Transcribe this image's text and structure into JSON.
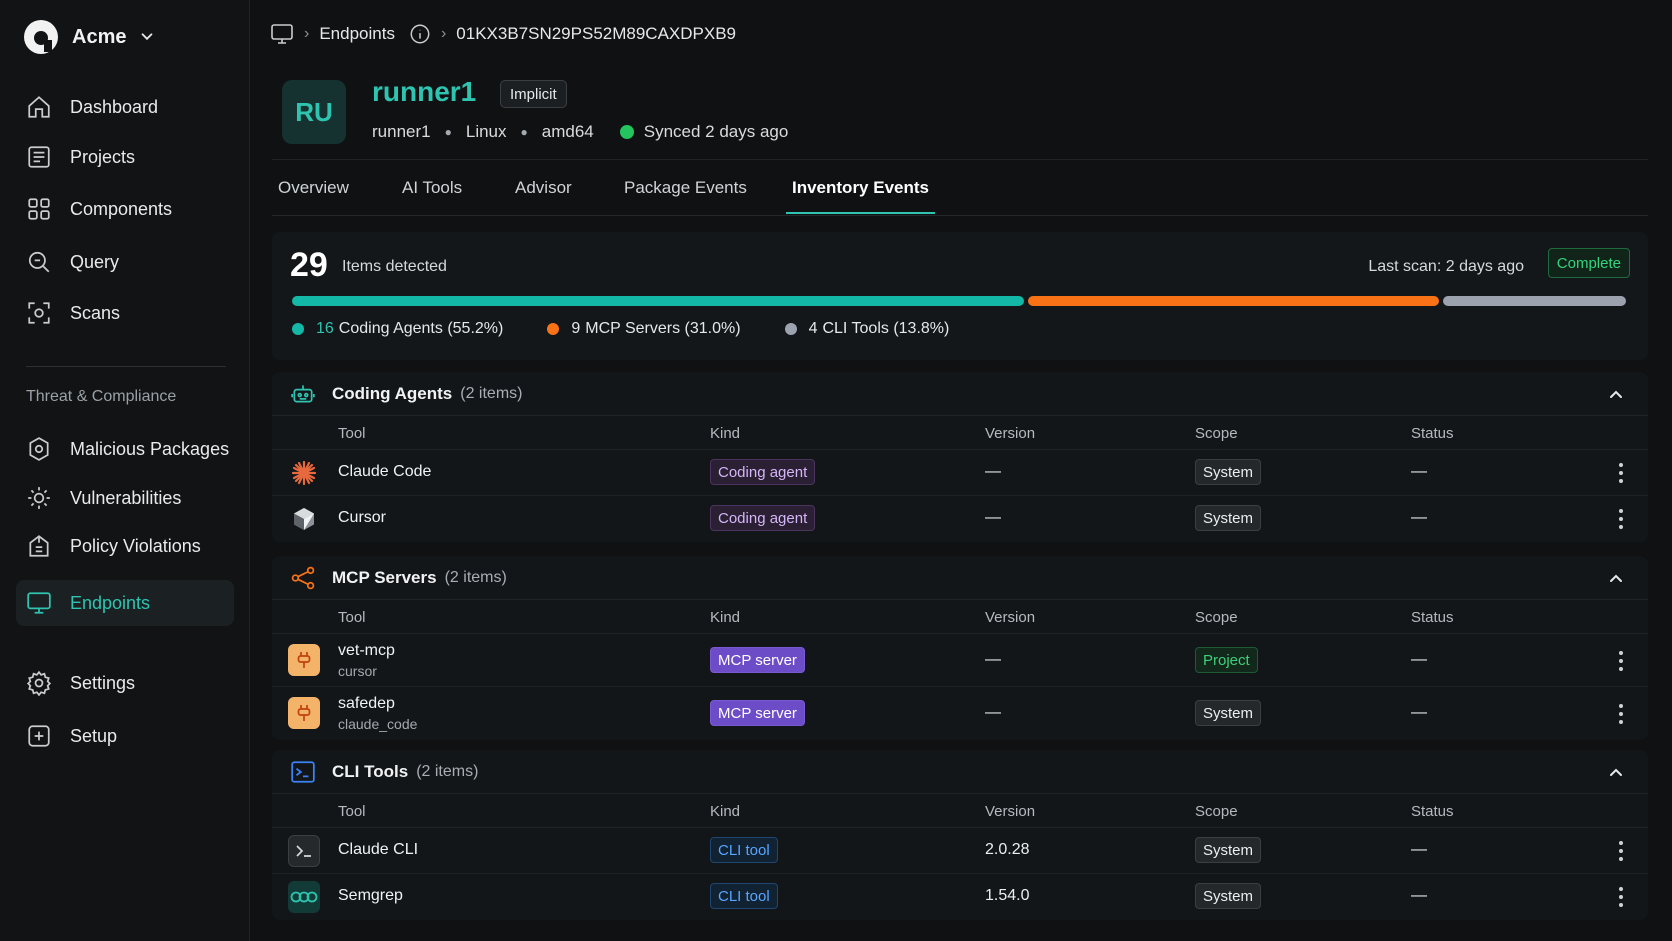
{
  "brand": {
    "name": "Acme"
  },
  "sidebar": {
    "items": [
      {
        "label": "Dashboard",
        "icon": "home-icon"
      },
      {
        "label": "Projects",
        "icon": "projects-icon"
      },
      {
        "label": "Components",
        "icon": "components-icon"
      },
      {
        "label": "Query",
        "icon": "query-icon"
      },
      {
        "label": "Scans",
        "icon": "scan-icon"
      }
    ],
    "section_label": "Threat & Compliance",
    "compliance_items": [
      {
        "label": "Malicious Packages",
        "icon": "malicious-icon"
      },
      {
        "label": "Vulnerabilities",
        "icon": "bug-icon"
      },
      {
        "label": "Policy Violations",
        "icon": "policy-icon"
      },
      {
        "label": "Endpoints",
        "icon": "monitor-icon",
        "active": true
      }
    ],
    "bottom_items": [
      {
        "label": "Settings",
        "icon": "gear-icon"
      },
      {
        "label": "Setup",
        "icon": "plus-square-icon"
      }
    ]
  },
  "breadcrumb": {
    "section": "Endpoints",
    "id": "01KX3B7SN29PS52M89CAXDPXB9"
  },
  "endpoint": {
    "avatar": "RU",
    "name": "runner1",
    "badge": "Implicit",
    "hostname": "runner1",
    "os": "Linux",
    "arch": "amd64",
    "sync_status": "Synced 2 days ago",
    "sync_color": "#22c55e"
  },
  "tabs": [
    "Overview",
    "AI Tools",
    "Advisor",
    "Package Events",
    "Inventory Events"
  ],
  "active_tab": "Inventory Events",
  "summary": {
    "count": "29",
    "count_label": "Items detected",
    "last_scan": "Last scan: 2 days ago",
    "status": "Complete",
    "segments": [
      {
        "count": "16",
        "label": "Coding Agents (55.2%)",
        "fraction": 0.552,
        "color": "#14b8a6"
      },
      {
        "count": "9",
        "label": "MCP Servers (31.0%)",
        "fraction": 0.31,
        "color": "#f97316"
      },
      {
        "count": "4",
        "label": "CLI Tools (13.8%)",
        "fraction": 0.138,
        "color": "#9ca3af"
      }
    ]
  },
  "columns": {
    "tool": "Tool",
    "kind": "Kind",
    "version": "Version",
    "scope": "Scope",
    "status": "Status"
  },
  "sections": [
    {
      "title": "Coding Agents",
      "count": "(2 items)",
      "icon": "robot-icon",
      "rows": [
        {
          "name": "Claude Code",
          "sub": "",
          "icon": "claude-starburst-icon",
          "kind": "Coding agent",
          "version": "—",
          "scope": "System",
          "status": "—"
        },
        {
          "name": "Cursor",
          "sub": "",
          "icon": "cursor-cube-icon",
          "kind": "Coding agent",
          "version": "—",
          "scope": "System",
          "status": "—"
        }
      ]
    },
    {
      "title": "MCP Servers",
      "count": "(2 items)",
      "icon": "share-nodes-icon",
      "rows": [
        {
          "name": "vet-mcp",
          "sub": "cursor",
          "icon": "plug-icon",
          "kind": "MCP server",
          "version": "—",
          "scope": "Project",
          "status": "—"
        },
        {
          "name": "safedep",
          "sub": "claude_code",
          "icon": "plug-icon",
          "kind": "MCP server",
          "version": "—",
          "scope": "System",
          "status": "—"
        }
      ]
    },
    {
      "title": "CLI Tools",
      "count": "(2 items)",
      "icon": "terminal-icon",
      "rows": [
        {
          "name": "Claude CLI",
          "sub": "",
          "icon": "terminal-prompt-icon",
          "kind": "CLI tool",
          "version": "2.0.28",
          "scope": "System",
          "status": "—"
        },
        {
          "name": "Semgrep",
          "sub": "",
          "icon": "semgrep-icon",
          "kind": "CLI tool",
          "version": "1.54.0",
          "scope": "System",
          "status": "—"
        }
      ]
    }
  ]
}
